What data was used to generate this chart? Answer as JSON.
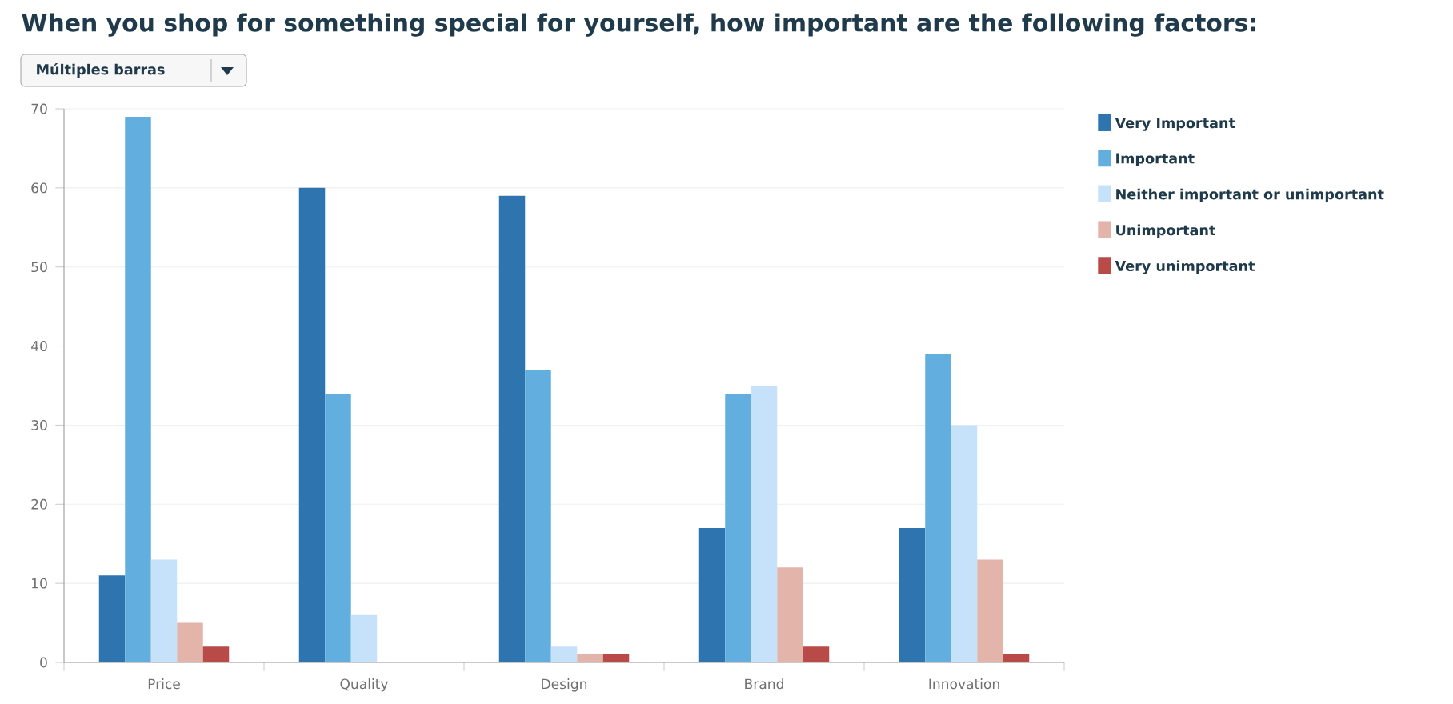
{
  "chart_data": {
    "type": "bar",
    "title": "When you shop for something special for yourself, how important are the following factors:",
    "annotations": [
      "Múltiples barras"
    ],
    "categories": [
      "Price",
      "Quality",
      "Design",
      "Brand",
      "Innovation"
    ],
    "series": [
      {
        "name": "Very Important",
        "color": "#2e75b0",
        "values": [
          11,
          60,
          59,
          17,
          17
        ]
      },
      {
        "name": "Important",
        "color": "#62aedf",
        "values": [
          69,
          34,
          37,
          34,
          39
        ]
      },
      {
        "name": "Neither important or unimportant",
        "color": "#c6e2fa",
        "values": [
          13,
          6,
          2,
          35,
          30
        ]
      },
      {
        "name": "Unimportant",
        "color": "#e2b4aa",
        "values": [
          5,
          0,
          1,
          12,
          13
        ]
      },
      {
        "name": "Very unimportant",
        "color": "#b84a48",
        "values": [
          2,
          0,
          1,
          2,
          1
        ]
      }
    ],
    "ylim": [
      0,
      70
    ],
    "yticks": [
      0,
      10,
      20,
      30,
      40,
      50,
      60,
      70
    ],
    "grid": "y",
    "legend": "right"
  }
}
